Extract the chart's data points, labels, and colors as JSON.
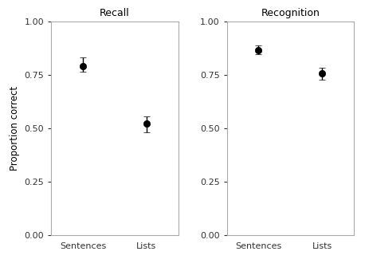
{
  "subplots": [
    {
      "title": "Recall",
      "categories": [
        "Sentences",
        "Lists"
      ],
      "means": [
        0.79,
        0.52
      ],
      "yerr_upper": [
        0.04,
        0.035
      ],
      "yerr_lower": [
        0.025,
        0.04
      ]
    },
    {
      "title": "Recognition",
      "categories": [
        "Sentences",
        "Lists"
      ],
      "means": [
        0.865,
        0.755
      ],
      "yerr_upper": [
        0.022,
        0.028
      ],
      "yerr_lower": [
        0.018,
        0.028
      ]
    }
  ],
  "ylabel": "Proportion correct",
  "ylim": [
    0.0,
    1.0
  ],
  "yticks": [
    0.0,
    0.25,
    0.5,
    0.75,
    1.0
  ],
  "yticklabels": [
    "0.00",
    "0.25",
    "0.50",
    "0.75",
    "1.00"
  ],
  "marker_color": "#000000",
  "marker_size": 6,
  "cap_size": 3,
  "elinewidth": 1.0,
  "capthick": 1.0,
  "figure_bg": "#ffffff",
  "axes_bg": "#ffffff",
  "spine_color": "#aaaaaa",
  "title_fontsize": 9,
  "label_fontsize": 8.5,
  "tick_fontsize": 8
}
